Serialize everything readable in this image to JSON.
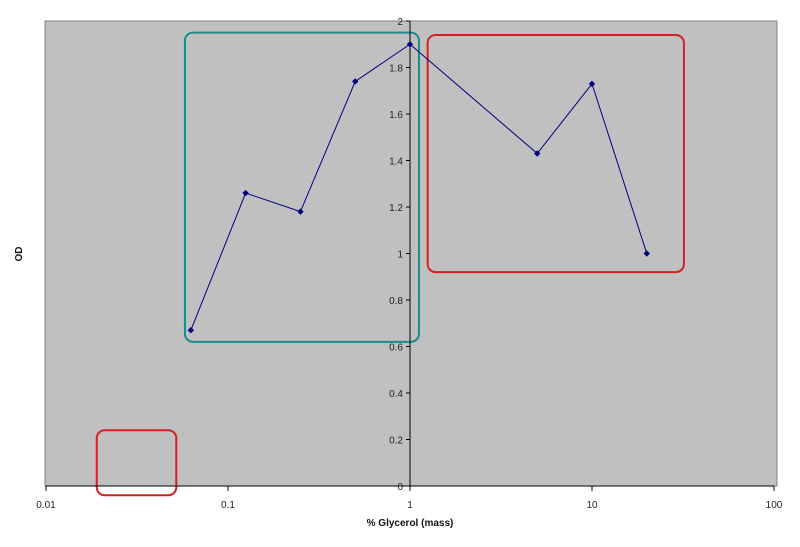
{
  "chart_data": {
    "type": "line",
    "title": "",
    "xlabel": "% Glycerol (mass)",
    "ylabel": "OD",
    "xscale": "log",
    "xlim": [
      0.01,
      100
    ],
    "ylim": [
      0,
      2
    ],
    "x_ticks": [
      "0.01",
      "0.1",
      "1",
      "10",
      "100"
    ],
    "y_ticks": [
      "0",
      "0.2",
      "0.4",
      "0.6",
      "0.8",
      "1",
      "1.2",
      "1.4",
      "1.6",
      "1.8",
      "2"
    ],
    "grid": false,
    "legend": null,
    "plot_background": "#c0c0c0",
    "series": [
      {
        "name": "OD",
        "color": "#000080",
        "marker": "diamond",
        "x": [
          0.0625,
          0.125,
          0.25,
          0.5,
          1,
          5,
          10,
          20
        ],
        "y": [
          0.67,
          1.26,
          1.18,
          1.74,
          1.9,
          1.43,
          1.73,
          1.0
        ]
      }
    ],
    "annotations": [
      {
        "type": "rounded-rect",
        "color": "#1a8a8a",
        "x_range": [
          0.058,
          1.12
        ],
        "y_range": [
          0.62,
          1.95
        ]
      },
      {
        "type": "rounded-rect",
        "color": "#d42020",
        "x_range": [
          1.25,
          32
        ],
        "y_range": [
          0.92,
          1.94
        ]
      },
      {
        "type": "rounded-rect",
        "color": "#d42020",
        "x_range": [
          0.019,
          0.052
        ],
        "y_range": [
          -0.04,
          0.24
        ]
      }
    ]
  }
}
